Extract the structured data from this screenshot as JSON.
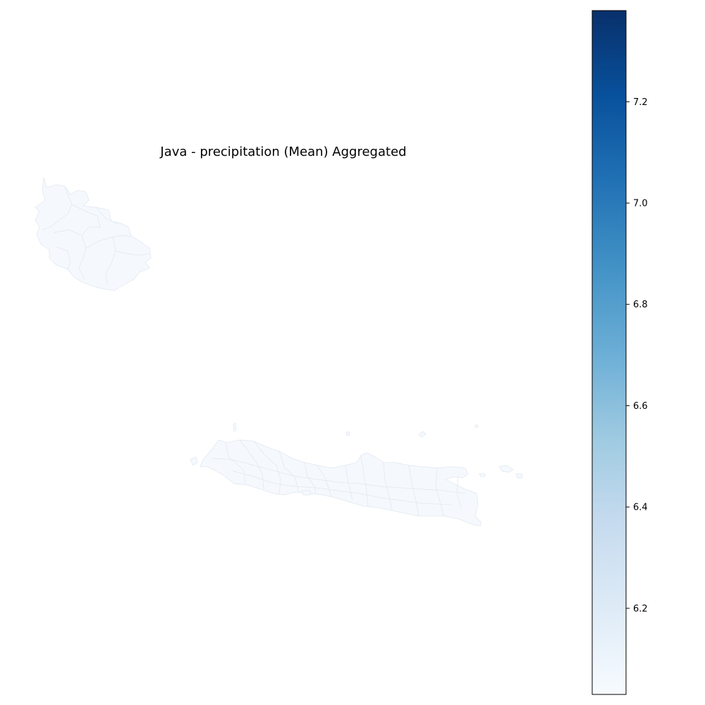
{
  "chart_data": {
    "type": "choropleth",
    "title": "Java - precipitation (Mean) Aggregated",
    "colormap": "Blues",
    "colorbar": {
      "range": [
        6.03,
        7.38
      ],
      "ticks": [
        6.2,
        6.4,
        6.6,
        6.8,
        7.0,
        7.2
      ],
      "tick_labels": [
        "6.2",
        "6.4",
        "6.6",
        "6.8",
        "7.0",
        "7.2"
      ],
      "colors": [
        "#f7fbff",
        "#deebf7",
        "#c6dbef",
        "#9ecae1",
        "#6baed6",
        "#4292c6",
        "#2171b5",
        "#08519c",
        "#08306b"
      ]
    },
    "region_fill_value": 6.05,
    "region_fill_color": "#f5f9fe",
    "axes_visible": false
  }
}
